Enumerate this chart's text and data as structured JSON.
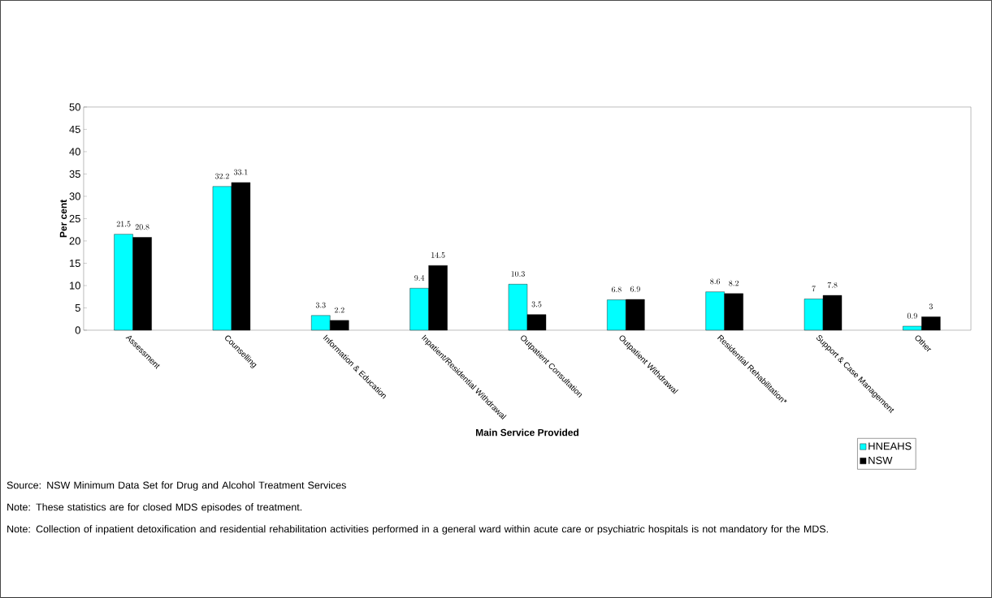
{
  "chart_data": {
    "type": "bar",
    "xlabel": "Main Service Provided",
    "ylabel": "Per cent",
    "categories": [
      "Assessment",
      "Counselling",
      "Information & Education",
      "Inpatient/Residential Withdrawal",
      "Outpatient Consultation",
      "Outpatient Withdrawal",
      "Residential Rehabilitation*",
      "Support & Case Management",
      "Other"
    ],
    "series": [
      {
        "name": "HNEAHS",
        "color": "#00ffff",
        "values": [
          21.5,
          32.2,
          3.3,
          9.4,
          10.3,
          6.8,
          8.6,
          7,
          0.9
        ]
      },
      {
        "name": "NSW",
        "color": "#000000",
        "values": [
          20.8,
          33.1,
          2.2,
          14.5,
          3.5,
          6.9,
          8.2,
          7.8,
          3
        ]
      }
    ],
    "ylim": [
      0,
      50
    ],
    "yticks": [
      0,
      5,
      10,
      15,
      20,
      25,
      30,
      35,
      40,
      45,
      50
    ],
    "grid": false,
    "legend": "bottom right",
    "data_labels": true,
    "annotations": [
      "Source: NSW Minimum Data Set for Drug and Alcohol Treatment Services",
      "Note: These statistics are for closed MDS episodes of treatment.",
      "Note:  Collection of inpatient detoxification and residential rehabilitation activities performed in a general ward within acute care or psychiatric hospitals is not mandatory for the MDS."
    ]
  }
}
